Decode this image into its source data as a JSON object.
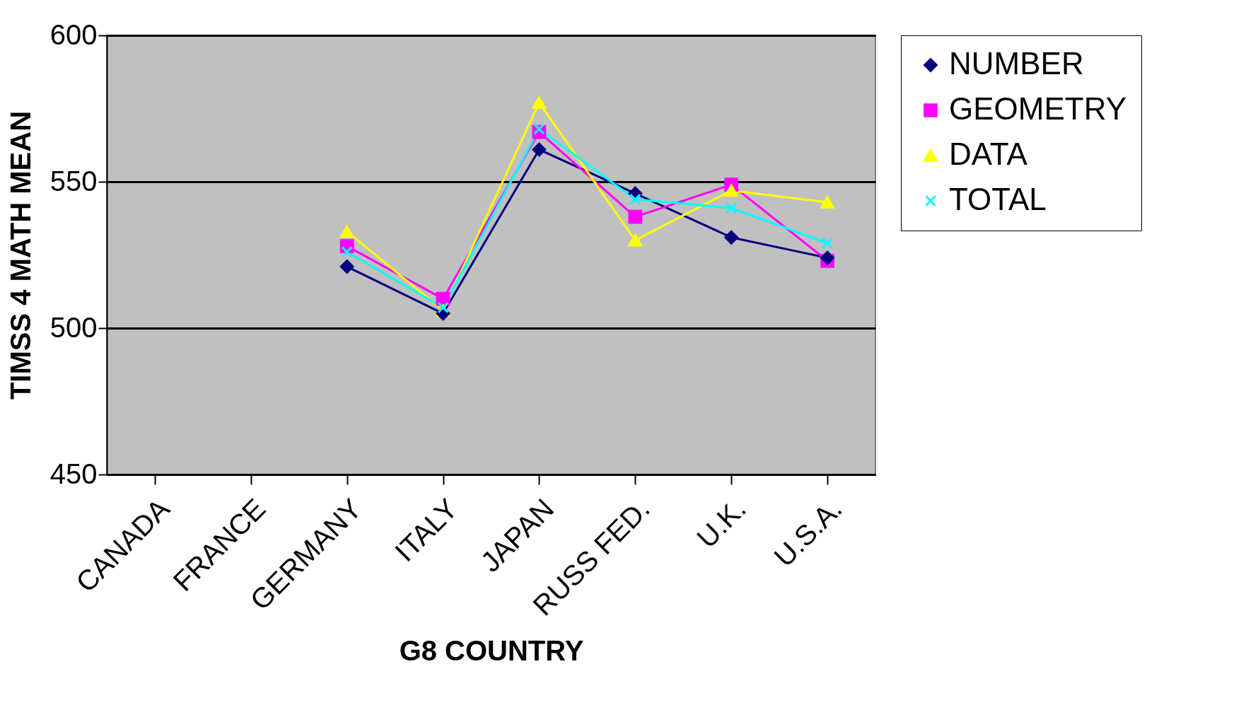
{
  "chart_data": {
    "type": "line",
    "xlabel": "G8 COUNTRY",
    "ylabel": "TIMSS 4 MATH MEAN",
    "categories": [
      "CANADA",
      "FRANCE",
      "GERMANY",
      "ITALY",
      "JAPAN",
      "RUSS FED.",
      "U.K.",
      "U.S.A."
    ],
    "series": [
      {
        "name": "NUMBER",
        "color": "#000080",
        "marker": "diamond",
        "values": [
          null,
          null,
          521,
          505,
          561,
          546,
          531,
          524
        ]
      },
      {
        "name": "GEOMETRY",
        "color": "#ff00ff",
        "marker": "square",
        "values": [
          null,
          null,
          528,
          510,
          567,
          538,
          549,
          523
        ]
      },
      {
        "name": "DATA",
        "color": "#ffff00",
        "marker": "triangle",
        "values": [
          null,
          null,
          533,
          506,
          577,
          530,
          547,
          543
        ]
      },
      {
        "name": "TOTAL",
        "color": "#00ffff",
        "marker": "cross",
        "values": [
          null,
          null,
          526,
          507,
          568,
          544,
          541,
          529
        ]
      }
    ],
    "ylim": [
      450,
      600
    ],
    "yticks": [
      450,
      500,
      550,
      600
    ],
    "grid": "y",
    "legend": "right"
  }
}
